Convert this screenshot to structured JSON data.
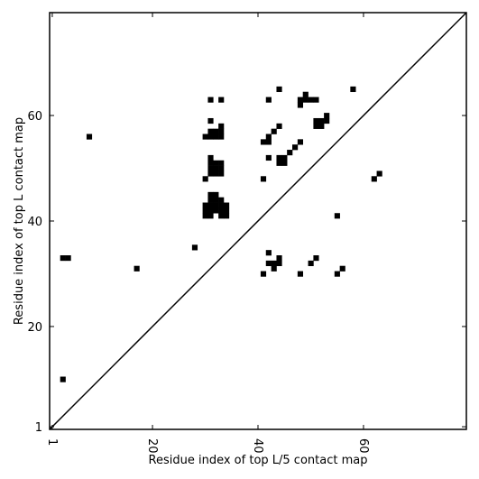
{
  "chart_data": {
    "type": "scatter",
    "marker": "square",
    "color": "#000000",
    "xlabel": "Residue index of top L/5 contact map",
    "ylabel": "Residue index of top L contact map",
    "xlim": [
      0.5,
      79.5
    ],
    "ylim": [
      0.5,
      79.5
    ],
    "xticks": [
      1,
      20,
      40,
      60
    ],
    "yticks": [
      1,
      20,
      40,
      60
    ],
    "diagonal": true,
    "x": [
      3,
      3,
      4,
      8,
      17,
      28,
      30,
      31,
      33,
      31,
      30,
      31,
      32,
      33,
      31,
      32,
      33,
      33,
      31,
      31,
      32,
      33,
      31,
      32,
      33,
      31,
      32,
      33,
      31,
      32,
      31,
      32,
      33,
      30,
      31,
      32,
      33,
      34,
      30,
      31,
      32,
      33,
      34,
      30,
      31,
      33,
      34,
      42,
      44,
      49,
      48,
      49,
      50,
      51,
      48,
      58,
      53,
      51,
      52,
      51,
      52,
      53,
      44,
      43,
      42,
      41,
      42,
      48,
      47,
      46,
      42,
      44,
      45,
      44,
      45,
      41,
      62,
      63,
      55,
      42,
      42,
      43,
      44,
      44,
      43,
      51,
      50,
      56,
      55,
      48,
      41
    ],
    "y": [
      10,
      33,
      33,
      56,
      31,
      35,
      48,
      63,
      63,
      59,
      56,
      56,
      56,
      56,
      57,
      57,
      57,
      58,
      52,
      49,
      49,
      49,
      50,
      50,
      50,
      51,
      51,
      51,
      45,
      45,
      44,
      44,
      44,
      43,
      43,
      43,
      43,
      43,
      42,
      42,
      42,
      42,
      42,
      41,
      41,
      41,
      41,
      63,
      65,
      64,
      63,
      63,
      63,
      63,
      62,
      65,
      60,
      58,
      58,
      59,
      59,
      59,
      58,
      57,
      56,
      55,
      55,
      55,
      54,
      53,
      52,
      51,
      51,
      52,
      52,
      48,
      48,
      49,
      41,
      34,
      32,
      32,
      32,
      33,
      31,
      33,
      32,
      31,
      30,
      30,
      30
    ]
  }
}
